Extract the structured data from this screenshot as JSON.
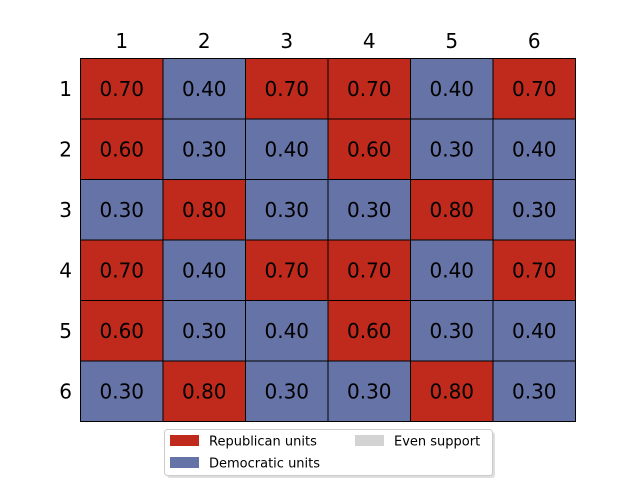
{
  "chart_data": {
    "type": "heatmap",
    "title": "",
    "xlabel": "",
    "ylabel": "",
    "columns": [
      "1",
      "2",
      "3",
      "4",
      "5",
      "6"
    ],
    "rows": [
      "1",
      "2",
      "3",
      "4",
      "5",
      "6"
    ],
    "values": [
      [
        "0.70",
        "0.40",
        "0.70",
        "0.70",
        "0.40",
        "0.70"
      ],
      [
        "0.60",
        "0.30",
        "0.40",
        "0.60",
        "0.30",
        "0.40"
      ],
      [
        "0.30",
        "0.80",
        "0.30",
        "0.30",
        "0.80",
        "0.30"
      ],
      [
        "0.70",
        "0.40",
        "0.70",
        "0.70",
        "0.40",
        "0.70"
      ],
      [
        "0.60",
        "0.30",
        "0.40",
        "0.60",
        "0.30",
        "0.40"
      ],
      [
        "0.30",
        "0.80",
        "0.30",
        "0.30",
        "0.80",
        "0.30"
      ]
    ],
    "categories": [
      {
        "key": "rep",
        "label": "Republican units",
        "color": "#bf2a1c"
      },
      {
        "key": "dem",
        "label": "Democratic units",
        "color": "#6673a6"
      },
      {
        "key": "even",
        "label": "Even support",
        "color": "#d3d3d3"
      }
    ],
    "threshold": 0.5,
    "legend_position": "bottom-center",
    "grid": false
  }
}
